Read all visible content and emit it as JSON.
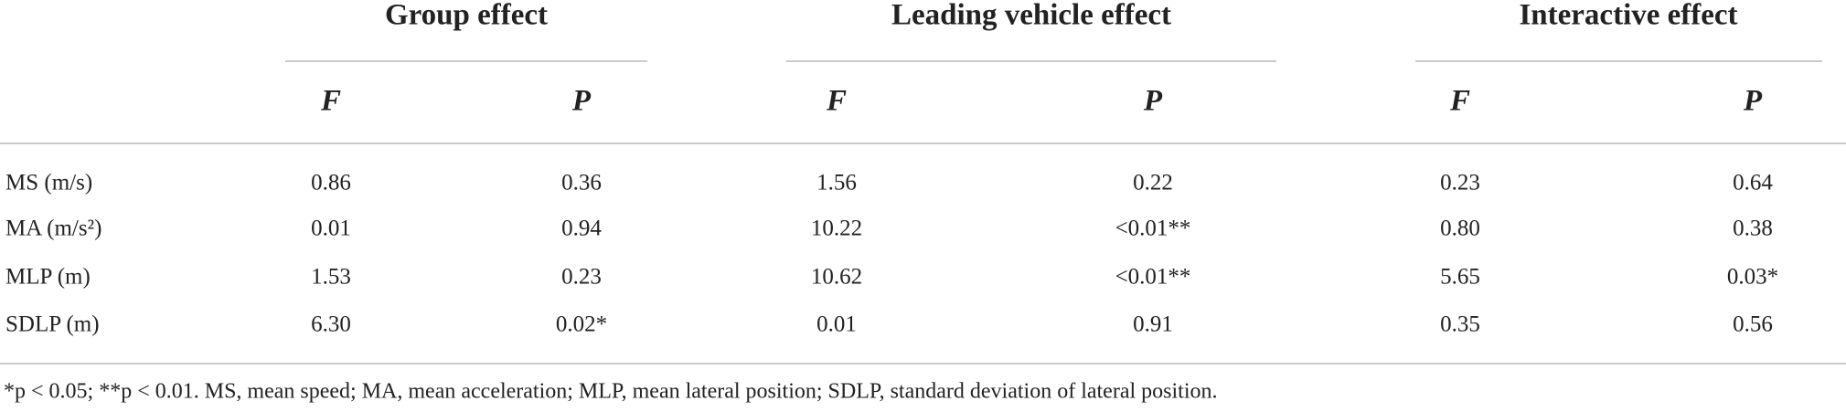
{
  "table": {
    "groups": [
      "Group effect",
      "Leading vehicle effect",
      "Interactive effect"
    ],
    "subheaders": [
      "F",
      "P",
      "F",
      "P",
      "F",
      "P"
    ],
    "rows": [
      [
        "MS (m/s)",
        "0.86",
        "0.36",
        "1.56",
        "0.22",
        "0.23",
        "0.64"
      ],
      [
        "MA (m/s²)",
        "0.01",
        "0.94",
        "10.22",
        "<0.01**",
        "0.80",
        "0.38"
      ],
      [
        "MLP (m)",
        "1.53",
        "0.23",
        "10.62",
        "<0.01**",
        "5.65",
        "0.03*"
      ],
      [
        "SDLP (m)",
        "6.30",
        "0.02*",
        "0.01",
        "0.91",
        "0.35",
        "0.56"
      ]
    ]
  },
  "footnote": "*p < 0.05; **p < 0.01. MS, mean speed; MA, mean acceleration; MLP, mean lateral position; SDLP, standard deviation of lateral position."
}
